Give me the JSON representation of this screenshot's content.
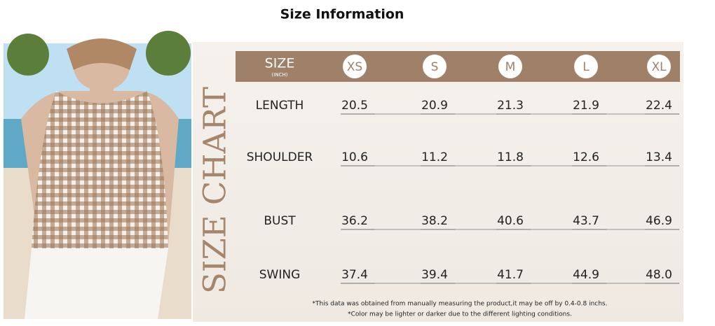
{
  "header": {
    "title": "Size Information"
  },
  "side_title": "SIZE CHART",
  "table": {
    "size_label": "SIZE",
    "unit": "(INCH)",
    "columns": [
      "XS",
      "S",
      "M",
      "L",
      "XL"
    ],
    "rows": [
      {
        "label": "LENGTH",
        "values": [
          "20.5",
          "20.9",
          "21.3",
          "21.9",
          "22.4"
        ]
      },
      {
        "label": "SHOULDER",
        "values": [
          "10.6",
          "11.2",
          "11.8",
          "12.6",
          "13.4"
        ]
      },
      {
        "label": "BUST",
        "values": [
          "36.2",
          "38.2",
          "40.6",
          "43.7",
          "46.9"
        ]
      },
      {
        "label": "SWING",
        "values": [
          "37.4",
          "39.4",
          "41.7",
          "44.9",
          "48.0"
        ]
      }
    ]
  },
  "notes": [
    "*This data was obtained from manually measuring the product,it may be off by 0.4-0.8 inchs.",
    "*Color may be lighter or darker due to the different lighting conditions."
  ]
}
